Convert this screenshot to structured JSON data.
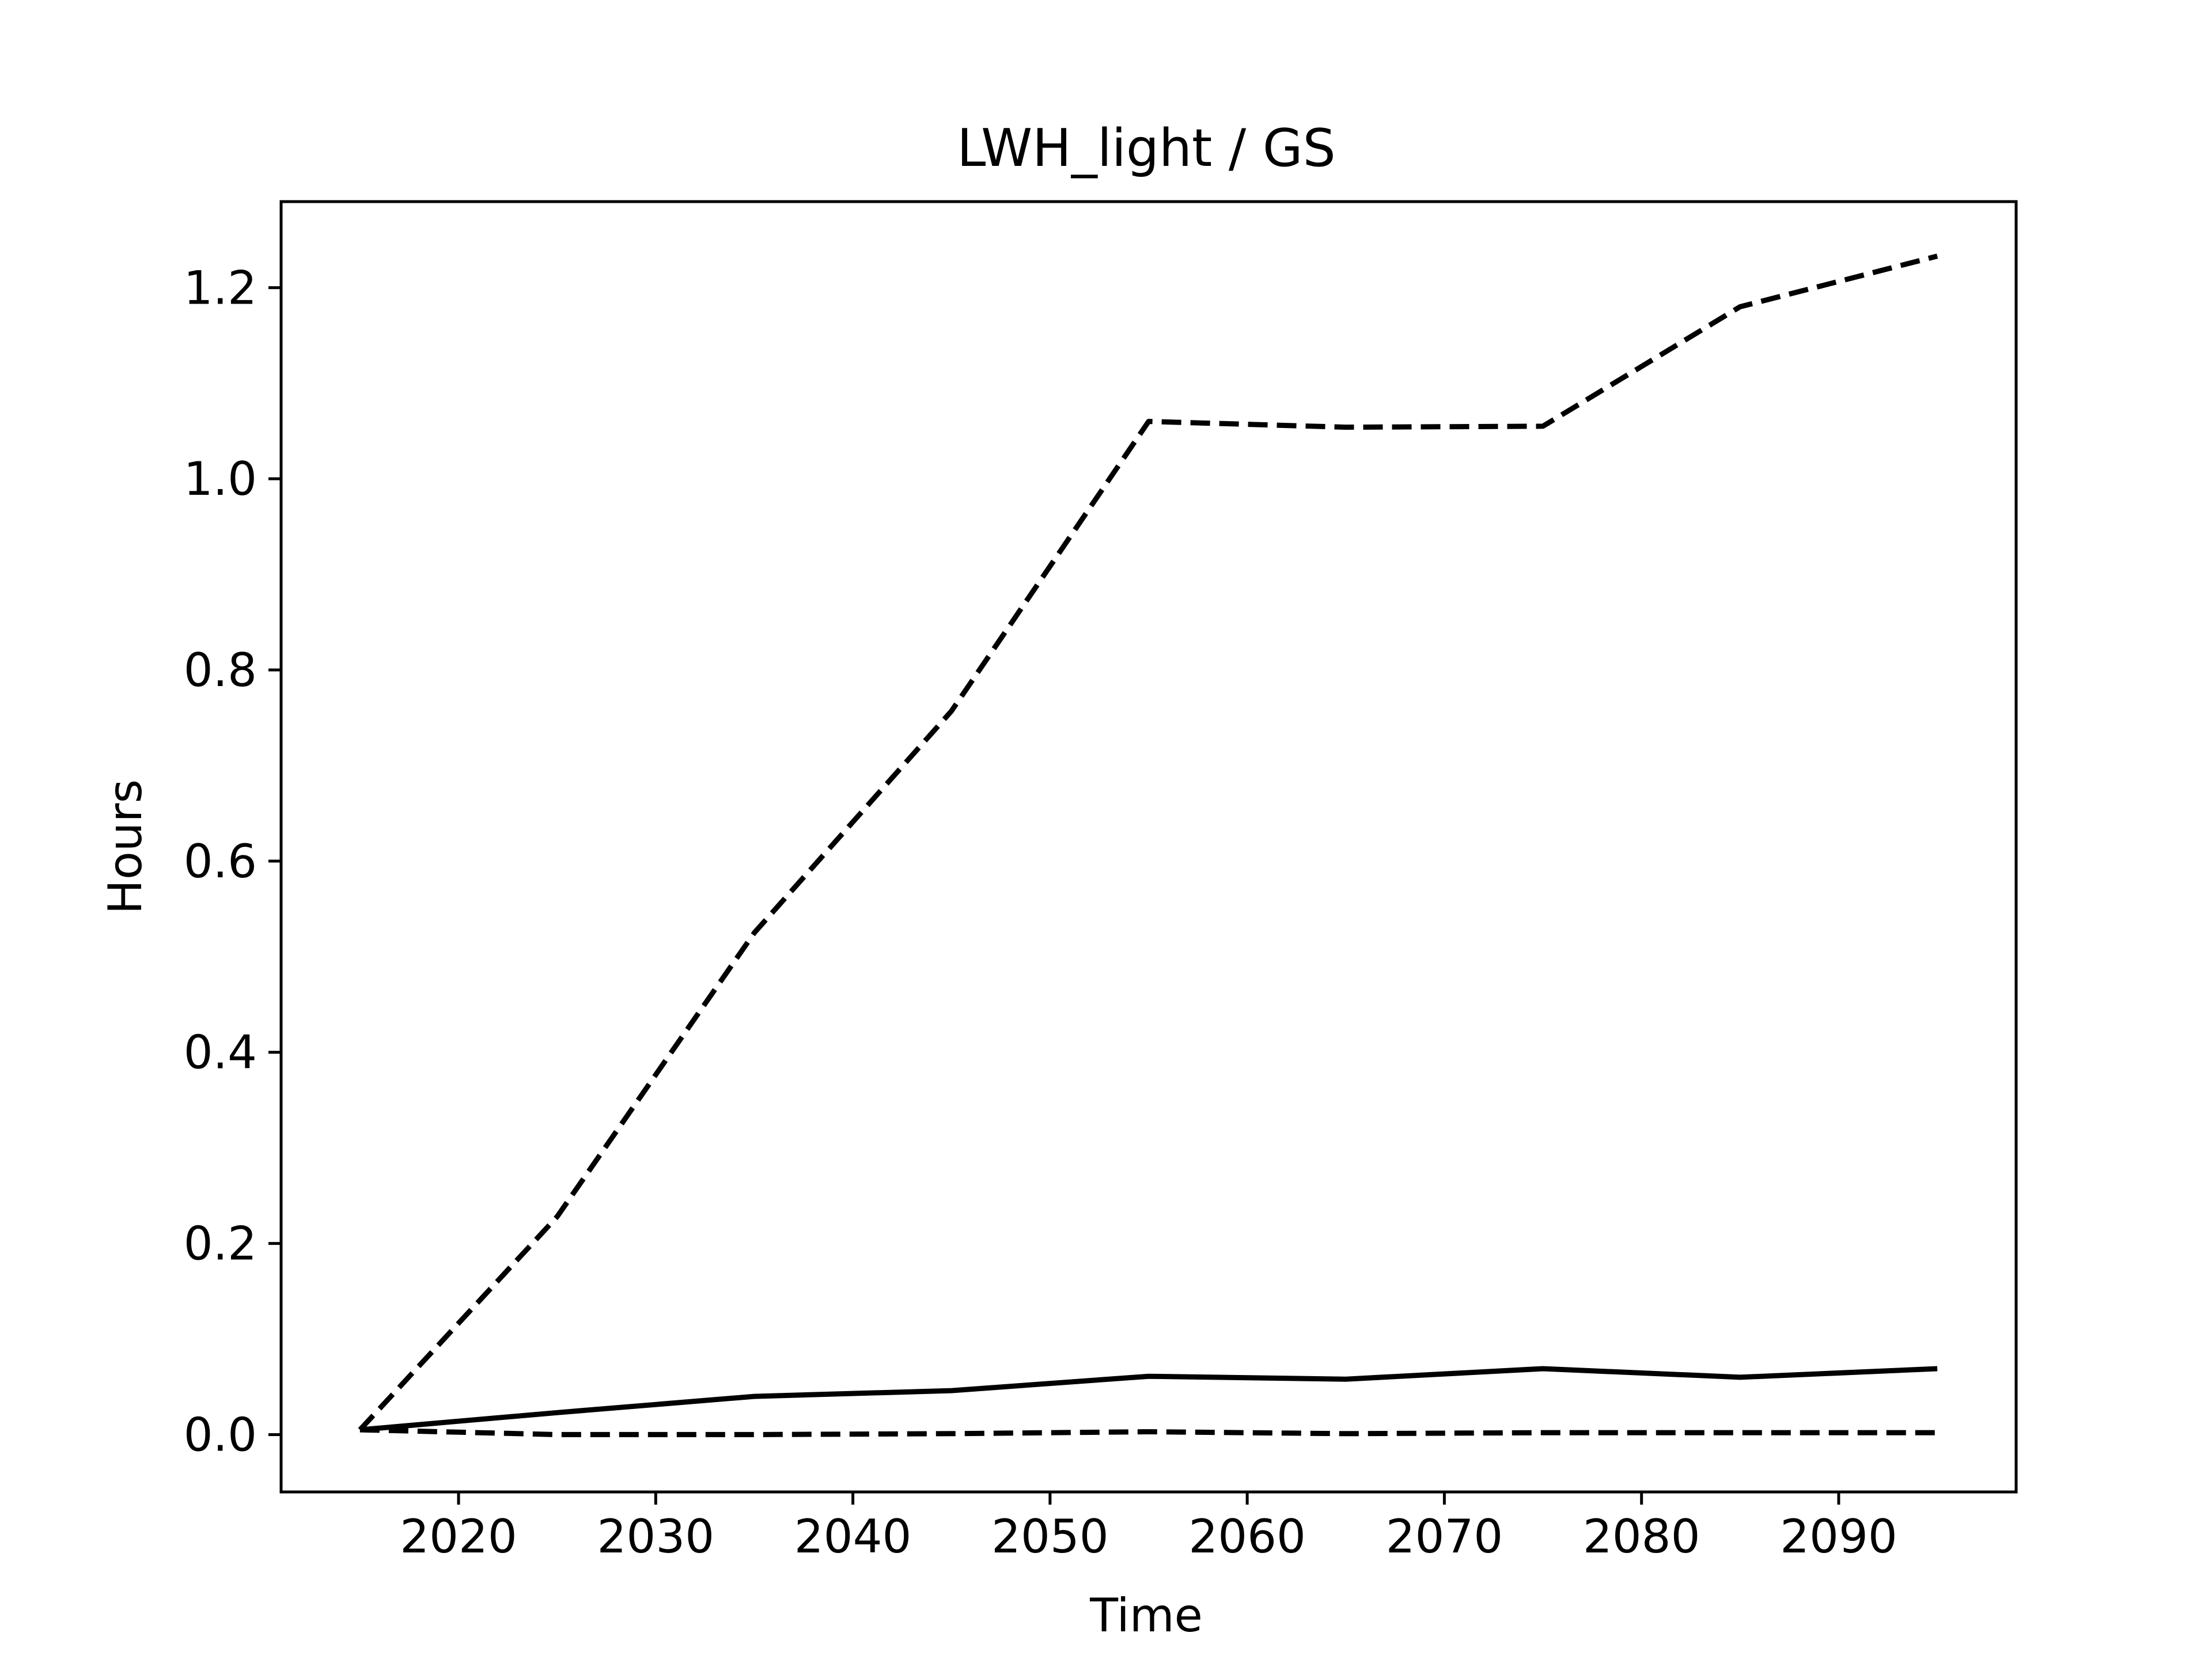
{
  "chart_data": {
    "type": "line",
    "title": "LWH_light / GS",
    "xlabel": "Time",
    "ylabel": "Hours",
    "xlim": [
      2011,
      2099
    ],
    "ylim": [
      -0.06,
      1.29
    ],
    "xticks": [
      2020,
      2030,
      2040,
      2050,
      2060,
      2070,
      2080,
      2090
    ],
    "yticks": [
      0.0,
      0.2,
      0.4,
      0.6,
      0.8,
      1.0,
      1.2
    ],
    "xtick_labels": [
      "2020",
      "2030",
      "2040",
      "2050",
      "2060",
      "2070",
      "2080",
      "2090"
    ],
    "ytick_labels": [
      "0.0",
      "0.2",
      "0.4",
      "0.6",
      "0.8",
      "1.0",
      "1.2"
    ],
    "grid": false,
    "legend": false,
    "x": [
      2015,
      2025,
      2035,
      2045,
      2055,
      2065,
      2075,
      2085,
      2095
    ],
    "series": [
      {
        "style": "solid",
        "color": "#000000",
        "values": [
          0.005,
          0.023,
          0.04,
          0.046,
          0.061,
          0.058,
          0.069,
          0.06,
          0.069
        ]
      },
      {
        "style": "dashed",
        "color": "#000000",
        "values": [
          0.005,
          0.228,
          0.525,
          0.757,
          1.06,
          1.054,
          1.055,
          1.18,
          1.233
        ]
      },
      {
        "style": "dashed",
        "color": "#000000",
        "values": [
          0.005,
          0.0,
          0.0,
          0.001,
          0.003,
          0.001,
          0.002,
          0.002,
          0.002
        ]
      }
    ]
  }
}
